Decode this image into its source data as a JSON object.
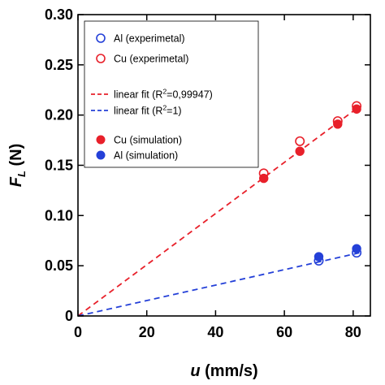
{
  "chart_data": {
    "type": "scatter",
    "xlabel": {
      "italic": "u",
      "rest": " (mm/s)"
    },
    "ylabel": {
      "main": "F",
      "sub": "L",
      "rest": " (N)"
    },
    "xlim": [
      0,
      85
    ],
    "ylim": [
      0,
      0.3
    ],
    "xticks": [
      0,
      20,
      40,
      60,
      80
    ],
    "xtick_labels": [
      "0",
      "20",
      "40",
      "60",
      "80"
    ],
    "yticks": [
      0,
      0.05,
      0.1,
      0.15,
      0.2,
      0.25,
      0.3
    ],
    "ytick_labels": [
      "0",
      "0.05",
      "0.10",
      "0.15",
      "0.20",
      "0.25",
      "0.30"
    ],
    "grid": false,
    "legend_position": "top-left",
    "colors": {
      "red": "#e8202a",
      "blue": "#2440d8"
    },
    "series": [
      {
        "name": "Al  (experimetal)",
        "kind": "open-circle",
        "color": "blue",
        "points": [
          [
            70,
            0.055
          ],
          [
            81,
            0.063
          ]
        ]
      },
      {
        "name": "Cu  (experimetal)",
        "kind": "open-circle",
        "color": "red",
        "points": [
          [
            54,
            0.142
          ],
          [
            64.5,
            0.174
          ],
          [
            75.5,
            0.194
          ],
          [
            81,
            0.209
          ]
        ]
      },
      {
        "name": "linear fit (R²=0,99947)",
        "legend_parts": [
          "linear fit (R",
          "2",
          "=0,99947)"
        ],
        "kind": "dashed-line",
        "color": "red",
        "line": [
          [
            0,
            0
          ],
          [
            82,
            0.209
          ]
        ]
      },
      {
        "name": "linear fit (R²=1)",
        "legend_parts": [
          "linear fit (R",
          "2",
          "=1)"
        ],
        "kind": "dashed-line",
        "color": "blue",
        "line": [
          [
            0,
            0
          ],
          [
            82,
            0.063
          ]
        ]
      },
      {
        "name": "Cu  (simulation)",
        "kind": "filled-circle",
        "color": "red",
        "points": [
          [
            54,
            0.137
          ],
          [
            64.5,
            0.164
          ],
          [
            75.5,
            0.191
          ],
          [
            81,
            0.206
          ]
        ]
      },
      {
        "name": "Al  (simulation)",
        "kind": "filled-circle",
        "color": "blue",
        "points": [
          [
            70,
            0.059
          ],
          [
            81,
            0.067
          ]
        ]
      }
    ]
  }
}
